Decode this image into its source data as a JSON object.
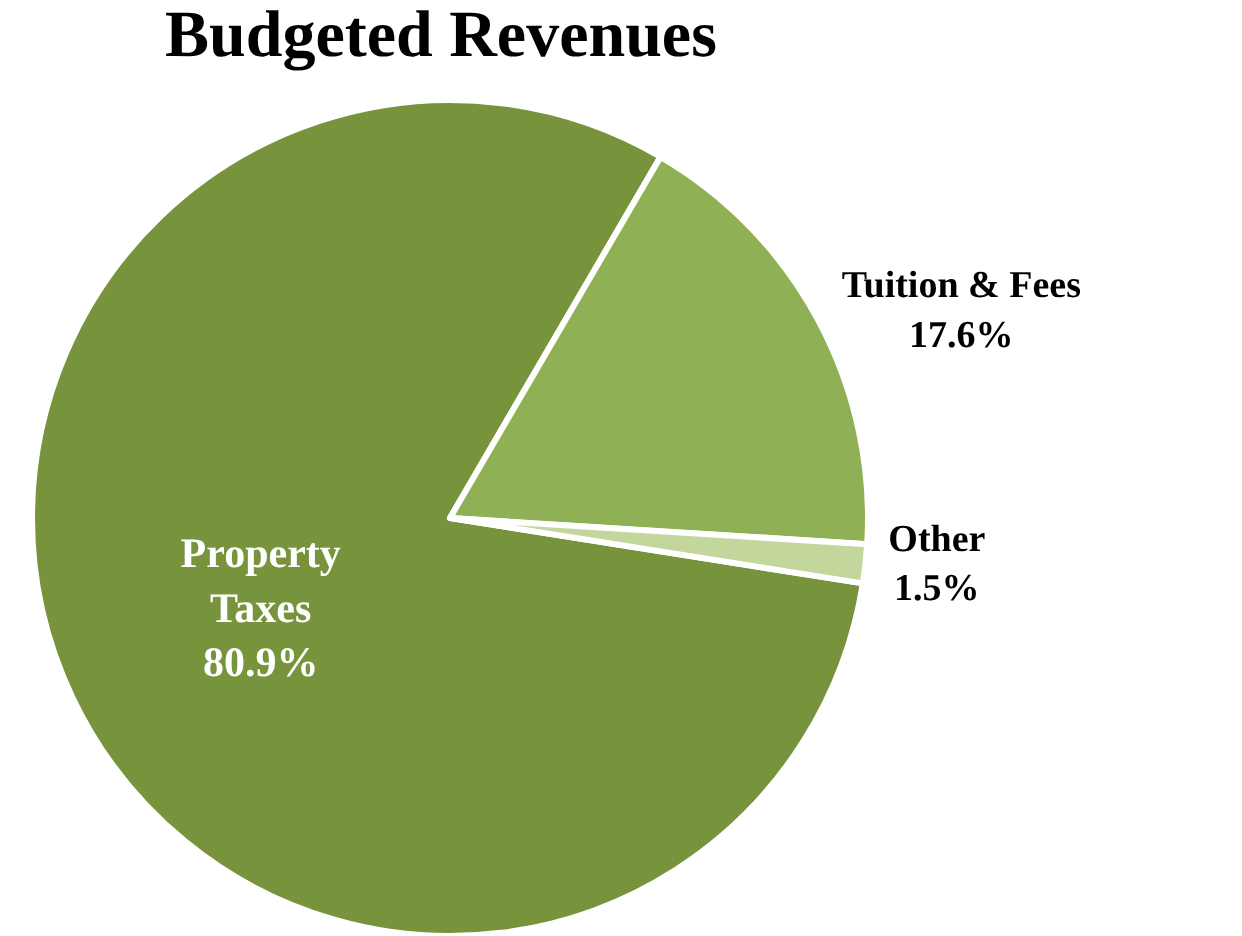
{
  "chart_data": {
    "type": "pie",
    "title": "Budgeted Revenues",
    "categories": [
      "Property Taxes",
      "Tuition & Fees",
      "Other"
    ],
    "values": [
      80.9,
      17.6,
      1.5
    ],
    "colors": [
      "#77933c",
      "#8fb054",
      "#c3d69b"
    ],
    "value_labels": [
      "80.9%",
      "17.6%",
      "1.5%"
    ]
  }
}
